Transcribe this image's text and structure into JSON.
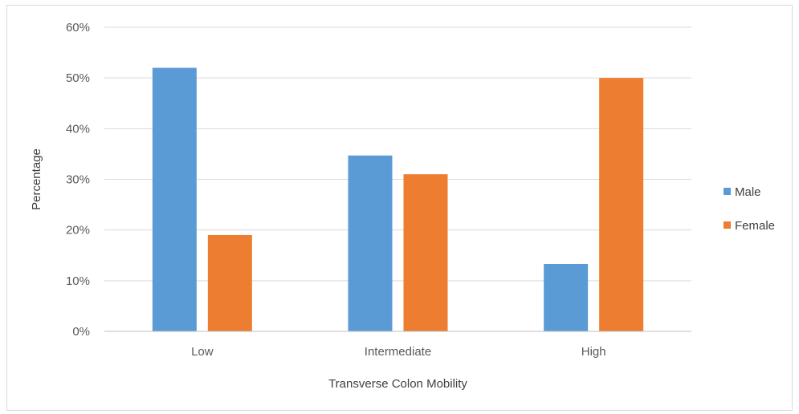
{
  "chart_data": {
    "type": "bar",
    "title": "",
    "xlabel": "Transverse Colon Mobility",
    "ylabel": "Percentage",
    "categories": [
      "Low",
      "Intermediate",
      "High"
    ],
    "series": [
      {
        "name": "Male",
        "color": "#5b9bd5",
        "values": [
          52,
          34.7,
          13.3
        ]
      },
      {
        "name": "Female",
        "color": "#ed7d31",
        "values": [
          19,
          31,
          50
        ]
      }
    ],
    "ylim": [
      0,
      60
    ],
    "yticks": [
      0,
      10,
      20,
      30,
      40,
      50,
      60
    ],
    "ytick_labels": [
      "0%",
      "10%",
      "20%",
      "30%",
      "40%",
      "50%",
      "60%"
    ],
    "grid": true,
    "legend_position": "right"
  }
}
